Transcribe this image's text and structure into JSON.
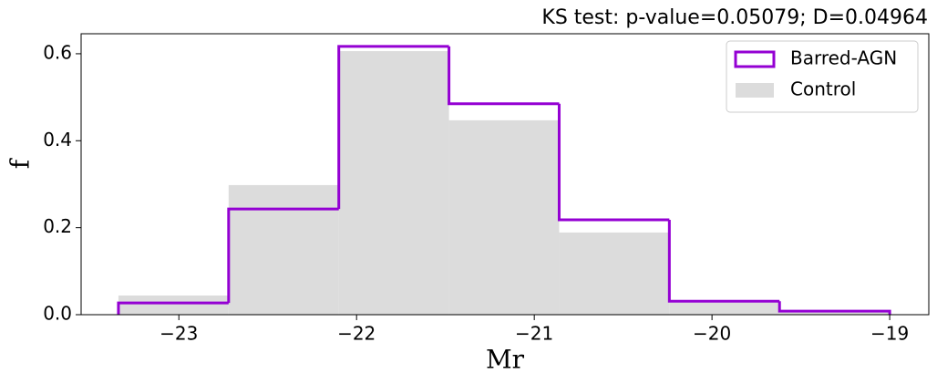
{
  "chart_data": {
    "type": "histogram",
    "title": "KS test: p-value=0.05079; D=0.04964",
    "x_label": "Mr",
    "y_label": "f",
    "bins": [
      -23.34,
      -22.72,
      -22.1,
      -21.48,
      -20.86,
      -20.24,
      -19.62,
      -19.0
    ],
    "series": [
      {
        "name": "Barred-AGN",
        "color": "#9400d3",
        "histtype": "step",
        "values": [
          0.027,
          0.243,
          0.617,
          0.485,
          0.218,
          0.031,
          0.008
        ]
      },
      {
        "name": "Control",
        "color": "#dcdcdc",
        "histtype": "stepfilled",
        "values": [
          0.044,
          0.298,
          0.606,
          0.447,
          0.189,
          0.028,
          0.005
        ]
      }
    ],
    "xlim": [
      -23.55,
      -18.78
    ],
    "xticks": [
      {
        "value": -23,
        "label": "−23"
      },
      {
        "value": -22,
        "label": "−22"
      },
      {
        "value": -21,
        "label": "−21"
      },
      {
        "value": -20,
        "label": "−20"
      },
      {
        "value": -19,
        "label": "−19"
      }
    ],
    "ylim": [
      0,
      0.646
    ],
    "yticks": [
      {
        "value": 0,
        "label": "0.0"
      },
      0.2,
      0.4,
      0.6
    ],
    "legend": "upper right"
  }
}
